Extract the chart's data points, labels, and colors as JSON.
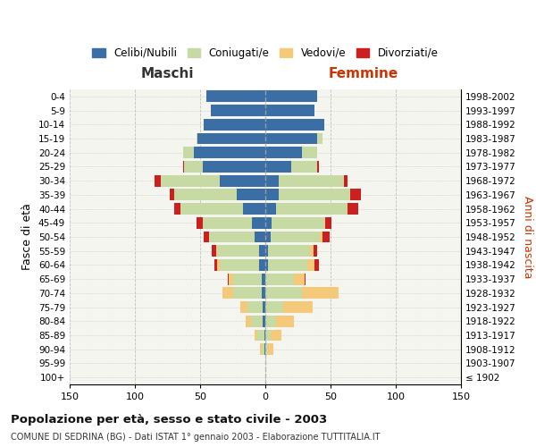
{
  "age_groups": [
    "100+",
    "95-99",
    "90-94",
    "85-89",
    "80-84",
    "75-79",
    "70-74",
    "65-69",
    "60-64",
    "55-59",
    "50-54",
    "45-49",
    "40-44",
    "35-39",
    "30-34",
    "25-29",
    "20-24",
    "15-19",
    "10-14",
    "5-9",
    "0-4"
  ],
  "birth_years": [
    "≤ 1902",
    "1903-1907",
    "1908-1912",
    "1913-1917",
    "1918-1922",
    "1923-1927",
    "1928-1932",
    "1933-1937",
    "1938-1942",
    "1943-1947",
    "1948-1952",
    "1953-1957",
    "1958-1962",
    "1963-1967",
    "1968-1972",
    "1973-1977",
    "1978-1982",
    "1983-1987",
    "1988-1992",
    "1993-1997",
    "1998-2002"
  ],
  "maschi": {
    "celibi": [
      0,
      0,
      1,
      1,
      2,
      2,
      3,
      3,
      5,
      5,
      8,
      10,
      17,
      22,
      35,
      48,
      55,
      52,
      47,
      42,
      45
    ],
    "coniugati": [
      0,
      0,
      2,
      5,
      9,
      12,
      22,
      22,
      30,
      32,
      35,
      38,
      48,
      48,
      45,
      14,
      8,
      1,
      0,
      0,
      0
    ],
    "vedovi": [
      0,
      0,
      1,
      2,
      4,
      5,
      8,
      3,
      2,
      1,
      0,
      0,
      0,
      0,
      0,
      0,
      0,
      0,
      0,
      0,
      0
    ],
    "divorziati": [
      0,
      0,
      0,
      0,
      0,
      0,
      0,
      1,
      2,
      3,
      4,
      5,
      5,
      3,
      5,
      1,
      0,
      0,
      0,
      0,
      0
    ]
  },
  "femmine": {
    "nubili": [
      0,
      0,
      0,
      0,
      0,
      0,
      0,
      0,
      2,
      2,
      4,
      5,
      8,
      10,
      10,
      20,
      28,
      40,
      45,
      38,
      40
    ],
    "coniugate": [
      0,
      0,
      2,
      4,
      8,
      14,
      28,
      22,
      30,
      32,
      38,
      40,
      55,
      55,
      50,
      20,
      12,
      4,
      0,
      0,
      0
    ],
    "vedove": [
      0,
      0,
      4,
      8,
      14,
      22,
      28,
      8,
      6,
      3,
      2,
      1,
      0,
      0,
      0,
      0,
      0,
      0,
      0,
      0,
      0
    ],
    "divorziate": [
      0,
      0,
      0,
      0,
      0,
      0,
      0,
      1,
      3,
      3,
      5,
      5,
      8,
      8,
      3,
      1,
      0,
      0,
      0,
      0,
      0
    ]
  },
  "colors": {
    "celibi": "#3a6ea5",
    "coniugati": "#c8daa4",
    "vedovi": "#f5c97a",
    "divorziati": "#cc2020"
  },
  "legend_labels": [
    "Celibi/Nubili",
    "Coniugati/e",
    "Vedovi/e",
    "Divorziati/e"
  ],
  "xlim": 150,
  "xticks": [
    150,
    100,
    50,
    0,
    50,
    100,
    150
  ],
  "title": "Popolazione per età, sesso e stato civile - 2003",
  "subtitle": "COMUNE DI SEDRINA (BG) - Dati ISTAT 1° gennaio 2003 - Elaborazione TUTTITALIA.IT",
  "ylabel_left": "Fasce di età",
  "ylabel_right": "Anni di nascita",
  "xlabel_maschi": "Maschi",
  "xlabel_femmine": "Femmine",
  "bg_color": "#f5f5f0"
}
